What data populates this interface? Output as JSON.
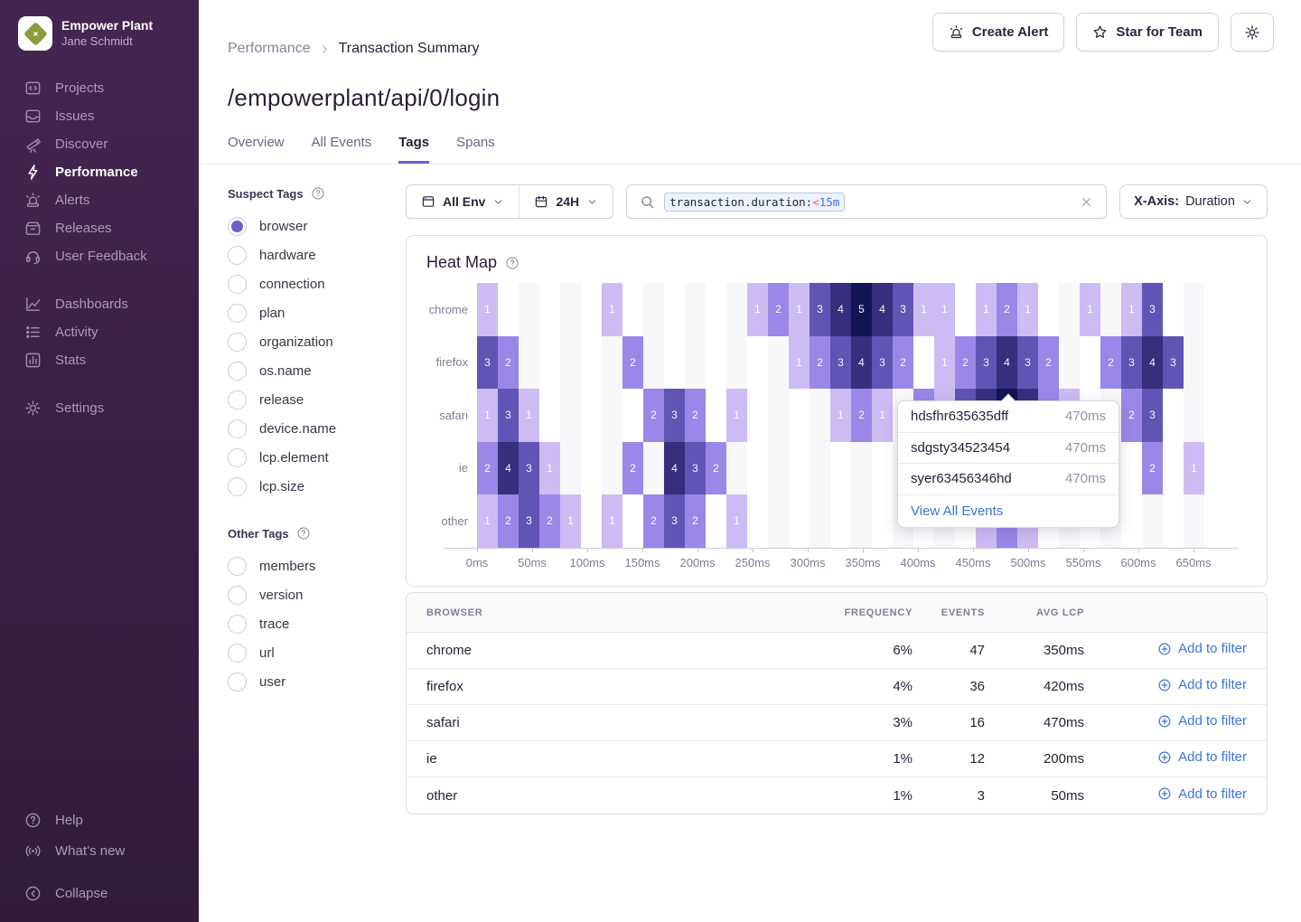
{
  "theme": {
    "accent": "#6C5FC7",
    "link_blue": "#3D74DB",
    "sidebar_top": "#422551",
    "sidebar_bottom": "#2E1B38"
  },
  "sidebar": {
    "org": "Empower Plant",
    "user": "Jane Schmidt",
    "sections": [
      {
        "items": [
          {
            "label": "Projects",
            "icon": "projects-icon"
          },
          {
            "label": "Issues",
            "icon": "issues-icon"
          },
          {
            "label": "Discover",
            "icon": "discover-icon"
          },
          {
            "label": "Performance",
            "icon": "performance-icon",
            "active": true
          },
          {
            "label": "Alerts",
            "icon": "alerts-icon"
          },
          {
            "label": "Releases",
            "icon": "releases-icon"
          },
          {
            "label": "User Feedback",
            "icon": "user-feedback-icon"
          }
        ]
      },
      {
        "items": [
          {
            "label": "Dashboards",
            "icon": "dashboards-icon"
          },
          {
            "label": "Activity",
            "icon": "activity-icon"
          },
          {
            "label": "Stats",
            "icon": "stats-icon"
          }
        ]
      },
      {
        "items": [
          {
            "label": "Settings",
            "icon": "settings-icon"
          }
        ]
      }
    ],
    "footer": [
      {
        "label": "Help",
        "icon": "help-icon"
      },
      {
        "label": "What’s new",
        "icon": "whats-new-icon"
      },
      {
        "label": "Collapse",
        "icon": "collapse-icon",
        "gap_before": true
      }
    ]
  },
  "header": {
    "breadcrumb": [
      "Performance",
      "Transaction Summary"
    ],
    "title": "/empowerplant/api/0/login",
    "actions": {
      "create_alert": "Create Alert",
      "star": "Star for Team"
    }
  },
  "tabs": {
    "items": [
      "Overview",
      "All Events",
      "Tags",
      "Spans"
    ],
    "active": "Tags"
  },
  "filters": {
    "env": "All Env",
    "range": "24H",
    "token": {
      "field": "transaction.duration:",
      "op": "<",
      "value": "15m"
    },
    "xaxis_label": "X-Axis:",
    "xaxis_value": "Duration"
  },
  "tags_panel": {
    "groups": [
      {
        "title": "Suspect Tags",
        "selected": "browser",
        "items": [
          "browser",
          "hardware",
          "connection",
          "plan",
          "organization",
          "os.name",
          "release",
          "device.name",
          "lcp.element",
          "lcp.size"
        ]
      },
      {
        "title": "Other Tags",
        "selected": null,
        "items": [
          "members",
          "version",
          "trace",
          "url",
          "user"
        ]
      }
    ]
  },
  "chart_data": {
    "type": "heatmap",
    "title": "Heat Map",
    "rows": [
      "chrome",
      "firefox",
      "safari",
      "ie",
      "other"
    ],
    "x_ticks": [
      "0ms",
      "50ms",
      "100ms",
      "150ms",
      "200ms",
      "250ms",
      "300ms",
      "350ms",
      "400ms",
      "450ms",
      "500ms",
      "550ms",
      "600ms",
      "650ms"
    ],
    "x_tick_interval_ms": 50,
    "columns": 36,
    "bucket_width_ms": 19,
    "palette": {
      "1": "#CDBCF4",
      "2": "#9A87E8",
      "3": "#6054B4",
      "4": "#372E7E",
      "5": "#121457"
    },
    "stripe_color": "#F8F7FA",
    "cells": [
      {
        "row": "chrome",
        "points": [
          {
            "c": 0,
            "v": 1
          },
          {
            "c": 6,
            "v": 1
          },
          {
            "c": 13,
            "v": 1
          },
          {
            "c": 14,
            "v": 2
          },
          {
            "c": 15,
            "v": 1
          },
          {
            "c": 16,
            "v": 3
          },
          {
            "c": 17,
            "v": 4
          },
          {
            "c": 18,
            "v": 5
          },
          {
            "c": 19,
            "v": 4
          },
          {
            "c": 20,
            "v": 3
          },
          {
            "c": 21,
            "v": 1
          },
          {
            "c": 22,
            "v": 1
          },
          {
            "c": 24,
            "v": 1
          },
          {
            "c": 25,
            "v": 2
          },
          {
            "c": 26,
            "v": 1
          },
          {
            "c": 29,
            "v": 1
          },
          {
            "c": 31,
            "v": 1
          },
          {
            "c": 32,
            "v": 3
          }
        ]
      },
      {
        "row": "firefox",
        "points": [
          {
            "c": 0,
            "v": 3
          },
          {
            "c": 1,
            "v": 2
          },
          {
            "c": 7,
            "v": 2
          },
          {
            "c": 15,
            "v": 1
          },
          {
            "c": 16,
            "v": 2
          },
          {
            "c": 17,
            "v": 3
          },
          {
            "c": 18,
            "v": 4
          },
          {
            "c": 19,
            "v": 3
          },
          {
            "c": 20,
            "v": 2
          },
          {
            "c": 22,
            "v": 1
          },
          {
            "c": 23,
            "v": 2
          },
          {
            "c": 24,
            "v": 3
          },
          {
            "c": 25,
            "v": 4
          },
          {
            "c": 26,
            "v": 3
          },
          {
            "c": 27,
            "v": 2
          },
          {
            "c": 30,
            "v": 2
          },
          {
            "c": 31,
            "v": 3
          },
          {
            "c": 32,
            "v": 4
          },
          {
            "c": 33,
            "v": 3
          }
        ]
      },
      {
        "row": "safari",
        "points": [
          {
            "c": 0,
            "v": 1
          },
          {
            "c": 1,
            "v": 3
          },
          {
            "c": 2,
            "v": 1
          },
          {
            "c": 8,
            "v": 2
          },
          {
            "c": 9,
            "v": 3
          },
          {
            "c": 10,
            "v": 2
          },
          {
            "c": 12,
            "v": 1
          },
          {
            "c": 17,
            "v": 1
          },
          {
            "c": 18,
            "v": 2
          },
          {
            "c": 19,
            "v": 1
          },
          {
            "c": 21,
            "v": "",
            "i": 2
          },
          {
            "c": 22,
            "v": "",
            "i": 1
          },
          {
            "c": 23,
            "v": "",
            "i": 3
          },
          {
            "c": 24,
            "v": "",
            "i": 4
          },
          {
            "c": 25,
            "v": "",
            "i": 5
          },
          {
            "c": 26,
            "v": "",
            "i": 4
          },
          {
            "c": 27,
            "v": "",
            "i": 2
          },
          {
            "c": 28,
            "v": "",
            "i": 1
          },
          {
            "c": 31,
            "v": 2
          },
          {
            "c": 32,
            "v": 3
          }
        ]
      },
      {
        "row": "ie",
        "points": [
          {
            "c": 0,
            "v": 2
          },
          {
            "c": 1,
            "v": 4
          },
          {
            "c": 2,
            "v": 3
          },
          {
            "c": 3,
            "v": 1
          },
          {
            "c": 7,
            "v": 2
          },
          {
            "c": 9,
            "v": 4
          },
          {
            "c": 10,
            "v": 3
          },
          {
            "c": 11,
            "v": 2
          },
          {
            "c": 32,
            "v": 2
          },
          {
            "c": 34,
            "v": 1
          }
        ]
      },
      {
        "row": "other",
        "points": [
          {
            "c": 0,
            "v": 1
          },
          {
            "c": 1,
            "v": 2
          },
          {
            "c": 2,
            "v": 3
          },
          {
            "c": 3,
            "v": 2
          },
          {
            "c": 4,
            "v": 1
          },
          {
            "c": 6,
            "v": 1
          },
          {
            "c": 8,
            "v": 2
          },
          {
            "c": 9,
            "v": 3
          },
          {
            "c": 10,
            "v": 2
          },
          {
            "c": 12,
            "v": 1
          },
          {
            "c": 24,
            "v": "",
            "i": 1
          },
          {
            "c": 25,
            "v": "",
            "i": 2
          },
          {
            "c": 26,
            "v": "",
            "i": 1
          }
        ]
      }
    ]
  },
  "tooltip": {
    "events": [
      {
        "id": "hdsfhr635635dff",
        "duration": "470ms"
      },
      {
        "id": "sdgsty34523454",
        "duration": "470ms"
      },
      {
        "id": "syer63456346hd",
        "duration": "470ms"
      }
    ],
    "link_label": "View All Events"
  },
  "table": {
    "headers": [
      "BROWSER",
      "FREQUENCY",
      "EVENTS",
      "AVG LCP",
      ""
    ],
    "action_label": "Add to filter",
    "rows": [
      {
        "browser": "chrome",
        "frequency": "6%",
        "events": "47",
        "avg_lcp": "350ms"
      },
      {
        "browser": "firefox",
        "frequency": "4%",
        "events": "36",
        "avg_lcp": "420ms"
      },
      {
        "browser": "safari",
        "frequency": "3%",
        "events": "16",
        "avg_lcp": "470ms"
      },
      {
        "browser": "ie",
        "frequency": "1%",
        "events": "12",
        "avg_lcp": "200ms"
      },
      {
        "browser": "other",
        "frequency": "1%",
        "events": "3",
        "avg_lcp": "50ms"
      }
    ]
  }
}
